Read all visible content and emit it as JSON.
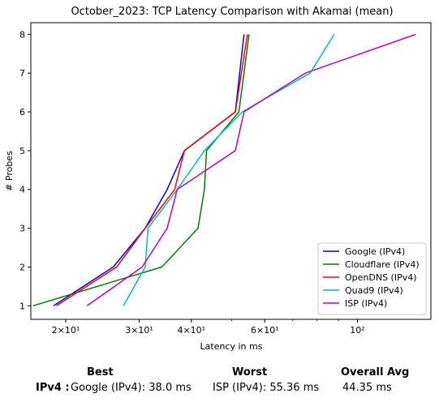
{
  "chart_data": {
    "type": "line",
    "title": "October_2023: TCP Latency Comparison with Akamai (mean)",
    "xlabel": "Latency in ms",
    "ylabel": "# Probes",
    "xscale": "log",
    "xlim": [
      16.5,
      150
    ],
    "ylim": [
      0.65,
      8.3
    ],
    "x_ticks": [
      {
        "value": 20,
        "label": "2×10¹"
      },
      {
        "value": 30,
        "label": "3×10¹"
      },
      {
        "value": 40,
        "label": "4×10¹"
      },
      {
        "value": 60,
        "label": "6×10¹"
      },
      {
        "value": 100,
        "label": "10²"
      }
    ],
    "y_ticks": [
      1,
      2,
      3,
      4,
      5,
      6,
      7,
      8
    ],
    "legend_position": "bottom-right",
    "grid": false,
    "series": [
      {
        "name": "Google (IPv4)",
        "color": "#0000ff",
        "points": [
          [
            18.7,
            1
          ],
          [
            26.0,
            2
          ],
          [
            31.0,
            3
          ],
          [
            35.0,
            4
          ],
          [
            38.5,
            5
          ],
          [
            51.0,
            6
          ],
          [
            53.5,
            8
          ]
        ]
      },
      {
        "name": "Cloudflare (IPv4)",
        "color": "#008000",
        "points": [
          [
            16.7,
            1
          ],
          [
            34.0,
            2
          ],
          [
            41.5,
            3
          ],
          [
            43.0,
            4
          ],
          [
            43.5,
            5
          ],
          [
            52.0,
            6
          ],
          [
            55.0,
            8
          ]
        ]
      },
      {
        "name": "OpenDNS (IPv4)",
        "color": "#ff0000",
        "points": [
          [
            19.0,
            1
          ],
          [
            26.5,
            2
          ],
          [
            31.0,
            3
          ],
          [
            36.5,
            4
          ],
          [
            38.5,
            5
          ],
          [
            51.0,
            6
          ],
          [
            54.5,
            8
          ]
        ]
      },
      {
        "name": "Quad9 (IPv4)",
        "color": "#00bfbf",
        "points": [
          [
            27.5,
            1
          ],
          [
            31.0,
            2
          ],
          [
            31.5,
            3
          ],
          [
            37.0,
            4
          ],
          [
            43.0,
            5
          ],
          [
            53.0,
            6
          ],
          [
            77.0,
            7
          ],
          [
            88.0,
            8
          ]
        ]
      },
      {
        "name": "ISP (IPv4)",
        "color": "#bf00bf",
        "points": [
          [
            22.5,
            1
          ],
          [
            30.5,
            2
          ],
          [
            35.0,
            3
          ],
          [
            37.0,
            4
          ],
          [
            51.0,
            5
          ],
          [
            53.5,
            6
          ],
          [
            75.0,
            7
          ],
          [
            138.0,
            8
          ]
        ]
      }
    ]
  },
  "summary": {
    "best_header": "Best",
    "worst_header": "Worst",
    "avg_header": "Overall Avg",
    "row_label": "IPv4 :",
    "best_value": "Google (IPv4): 38.0 ms",
    "worst_value": "ISP (IPv4): 55.36 ms",
    "avg_value": "44.35 ms"
  }
}
